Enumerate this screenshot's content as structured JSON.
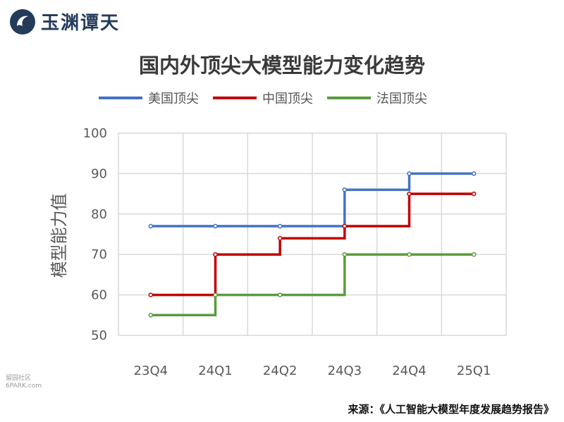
{
  "brand": {
    "name": "玉渊谭天"
  },
  "chart_data": {
    "type": "line",
    "step": true,
    "title": "国内外顶尖大模型能力变化趋势",
    "xlabel": "",
    "ylabel": "模型能力值",
    "categories": [
      "23Q4",
      "24Q1",
      "24Q2",
      "24Q3",
      "24Q4",
      "25Q1"
    ],
    "ylim": [
      50,
      100
    ],
    "yticks": [
      "50",
      "60",
      "70",
      "80",
      "90",
      "100"
    ],
    "grid": true,
    "legend_position": "top",
    "series": [
      {
        "name": "美国顶尖",
        "color": "#4472C4",
        "values": [
          77,
          77,
          77,
          86,
          90,
          90
        ]
      },
      {
        "name": "中国顶尖",
        "color": "#C00000",
        "values": [
          60,
          70,
          74,
          77,
          85,
          85
        ]
      },
      {
        "name": "法国顶尖",
        "color": "#5B9B3F",
        "values": [
          55,
          60,
          60,
          70,
          70,
          70
        ]
      }
    ]
  },
  "source_note": "来源：《人工智能大模型年度发展趋势报告》",
  "watermark": {
    "line1": "留园社区",
    "line2": "6PARK.com"
  }
}
